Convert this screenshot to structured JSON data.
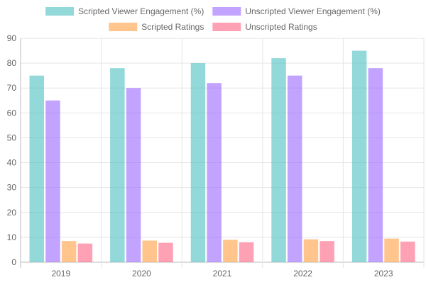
{
  "chart_data": {
    "type": "bar",
    "categories": [
      "2019",
      "2020",
      "2021",
      "2022",
      "2023"
    ],
    "series": [
      {
        "name": "Scripted Viewer Engagement (%)",
        "values": [
          75,
          78,
          80,
          82,
          85
        ],
        "color": "#4BC0C0"
      },
      {
        "name": "Unscripted Viewer Engagement (%)",
        "values": [
          65,
          70,
          72,
          75,
          78
        ],
        "color": "#9966FF"
      },
      {
        "name": "Scripted Ratings",
        "values": [
          8.5,
          8.7,
          9.0,
          9.2,
          9.5
        ],
        "color": "#FF9F40"
      },
      {
        "name": "Unscripted Ratings",
        "values": [
          7.5,
          7.8,
          8.0,
          8.5,
          8.3
        ],
        "color": "#FF6384"
      }
    ],
    "yticks": [
      "0",
      "10",
      "20",
      "30",
      "40",
      "50",
      "60",
      "70",
      "80",
      "90"
    ],
    "ylim": [
      0,
      90
    ],
    "grid": true,
    "legend_position": "top"
  }
}
